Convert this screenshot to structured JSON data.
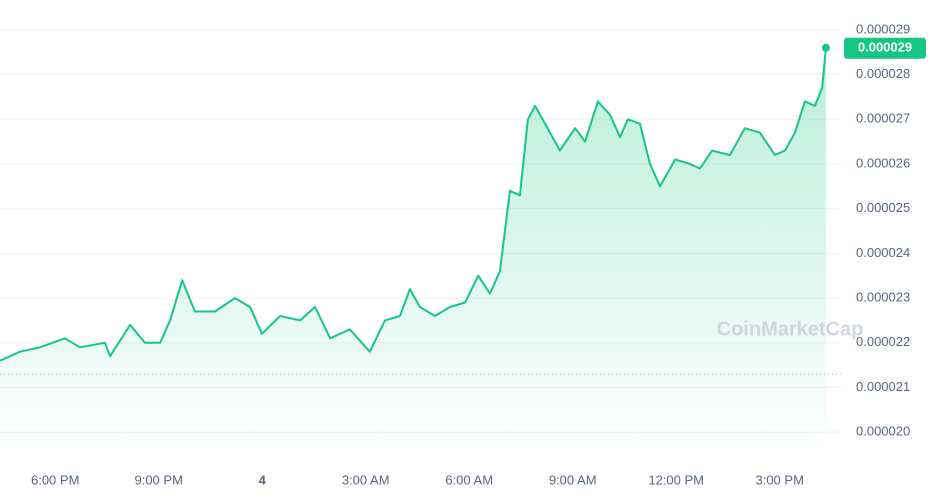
{
  "chart_data": {
    "type": "line",
    "color": "#16c784",
    "x": [
      16.4,
      16.98,
      17.56,
      18.28,
      18.72,
      19.44,
      19.59,
      20.17,
      20.6,
      21.04,
      21.33,
      21.68,
      22.05,
      22.63,
      23.21,
      23.65,
      23.99,
      24.52,
      25.1,
      25.53,
      25.97,
      26.54,
      27.12,
      27.56,
      27.99,
      28.28,
      28.57,
      29.01,
      29.44,
      29.88,
      30.26,
      30.6,
      30.89,
      31.18,
      31.47,
      31.7,
      31.91,
      32.2,
      32.63,
      33.07,
      33.36,
      33.73,
      34.08,
      34.37,
      34.6,
      34.95,
      35.24,
      35.53,
      35.97,
      36.4,
      36.69,
      37.04,
      37.56,
      37.99,
      38.43,
      38.86,
      39.15,
      39.44,
      39.73,
      40.02,
      40.23,
      40.34
    ],
    "values": [
      2.16e-05,
      2.18e-05,
      2.19e-05,
      2.21e-05,
      2.19e-05,
      2.2e-05,
      2.17e-05,
      2.24e-05,
      2.2e-05,
      2.2e-05,
      2.25e-05,
      2.34e-05,
      2.27e-05,
      2.27e-05,
      2.3e-05,
      2.28e-05,
      2.22e-05,
      2.26e-05,
      2.25e-05,
      2.28e-05,
      2.21e-05,
      2.23e-05,
      2.18e-05,
      2.25e-05,
      2.26e-05,
      2.32e-05,
      2.28e-05,
      2.26e-05,
      2.28e-05,
      2.29e-05,
      2.35e-05,
      2.31e-05,
      2.36e-05,
      2.54e-05,
      2.53e-05,
      2.7e-05,
      2.73e-05,
      2.69e-05,
      2.63e-05,
      2.68e-05,
      2.65e-05,
      2.74e-05,
      2.71e-05,
      2.66e-05,
      2.7e-05,
      2.69e-05,
      2.6e-05,
      2.55e-05,
      2.61e-05,
      2.6e-05,
      2.59e-05,
      2.63e-05,
      2.62e-05,
      2.68e-05,
      2.67e-05,
      2.62e-05,
      2.63e-05,
      2.67e-05,
      2.74e-05,
      2.73e-05,
      2.77e-05,
      2.86e-05
    ],
    "last_value_label": "0.000029",
    "open_price": 2.13e-05,
    "xlim": [
      16.4,
      40.4
    ],
    "xticks": [
      {
        "value": 18,
        "label": "6:00 PM"
      },
      {
        "value": 21,
        "label": "9:00 PM"
      },
      {
        "value": 24,
        "label": "4"
      },
      {
        "value": 27,
        "label": "3:00 AM"
      },
      {
        "value": 30,
        "label": "6:00 AM"
      },
      {
        "value": 33,
        "label": "9:00 AM"
      },
      {
        "value": 36,
        "label": "12:00 PM"
      },
      {
        "value": 39,
        "label": "3:00 PM"
      }
    ],
    "ylim": [
      1.94e-05,
      2.94e-05
    ],
    "yticks": [
      2.9e-05,
      2.8e-05,
      2.7e-05,
      2.6e-05,
      2.5e-05,
      2.4e-05,
      2.3e-05,
      2.2e-05,
      2.1e-05,
      {
        "value": 2e-05,
        "label": "0.000020"
      }
    ],
    "grid": true,
    "watermark": "CoinMarketCap"
  }
}
